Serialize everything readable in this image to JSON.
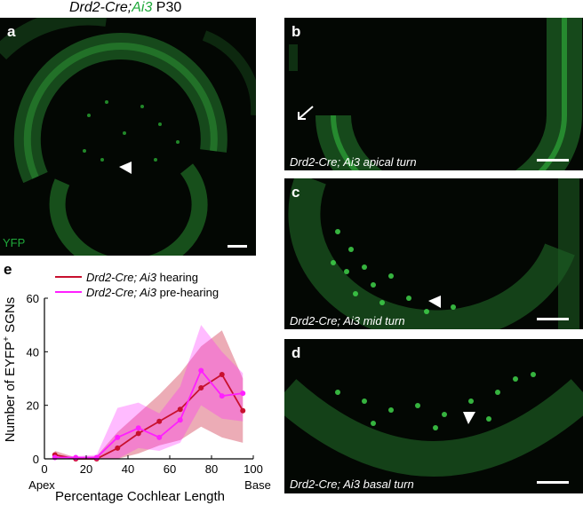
{
  "figure_title": {
    "gene": "Drd2-Cre;",
    "reporter": "Ai3",
    "age": " P30"
  },
  "panels": {
    "a": {
      "label": "a",
      "channel": "YFP"
    },
    "b": {
      "label": "b",
      "caption": "Drd2-Cre; Ai3 apical turn"
    },
    "c": {
      "label": "c",
      "caption": "Drd2-Cre; Ai3 mid turn"
    },
    "d": {
      "label": "d",
      "caption": "Drd2-Cre; Ai3 basal turn"
    },
    "e": {
      "label": "e"
    }
  },
  "colors": {
    "hearing": "#c8102e",
    "pre_hearing": "#ff1fff",
    "fluorescence": "#1fa83a"
  },
  "chart_data": {
    "type": "line",
    "ylabel_prefix": "Number of EYFP",
    "ylabel_sup": "+",
    "ylabel_suffix": " SGNs",
    "xlabel": "Percentage Cochlear Length",
    "x_end_labels": {
      "left": "Apex",
      "right": "Base"
    },
    "xlim": [
      0,
      100
    ],
    "ylim": [
      0,
      60
    ],
    "xticks": [
      0,
      20,
      40,
      60,
      80,
      100
    ],
    "yticks": [
      0,
      20,
      40,
      60
    ],
    "legend_position": "top",
    "x": [
      5,
      15,
      25,
      35,
      45,
      55,
      65,
      75,
      85,
      95
    ],
    "series": [
      {
        "name_italic": "Drd2-Cre; Ai3",
        "name_suffix": " hearing",
        "color": "#c8102e",
        "values": [
          1.5,
          0,
          0,
          4,
          9.5,
          14,
          18.5,
          26.5,
          31.5,
          18
        ],
        "lower": [
          0,
          0,
          0,
          0,
          2,
          5,
          7,
          12,
          8,
          6
        ],
        "upper": [
          3,
          0.5,
          1,
          10,
          17,
          24,
          32,
          42,
          48,
          30
        ]
      },
      {
        "name_italic": "Drd2-Cre; Ai3",
        "name_suffix": " pre-hearing",
        "color": "#ff1fff",
        "values": [
          0.5,
          0.5,
          0.5,
          8,
          11.5,
          8,
          14.5,
          33,
          23.5,
          24.5
        ],
        "lower": [
          0,
          0,
          0,
          0,
          4,
          3,
          6,
          20,
          15,
          14
        ],
        "upper": [
          1.5,
          1,
          1.5,
          19,
          21,
          17,
          27,
          50,
          40,
          32
        ]
      }
    ]
  }
}
